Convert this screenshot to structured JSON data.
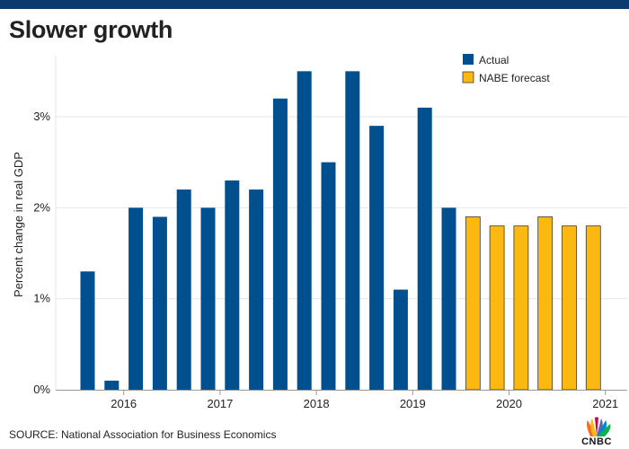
{
  "header": {
    "title": "Slower growth",
    "source": "SOURCE: National Association for Business Economics",
    "logo_text": "CNBC"
  },
  "colors": {
    "topbar": "#0b3a6e",
    "actual": "#00508f",
    "forecast": "#fbb810",
    "forecast_stroke": "#3a3a3a",
    "grid": "#e6e6e6",
    "text": "#222222"
  },
  "chart_data": {
    "type": "bar",
    "title": "Slower growth",
    "ylabel": "Percent change in real GDP",
    "xlabel": "",
    "ylim": [
      0,
      3.5
    ],
    "y_ticks": [
      0,
      1,
      2,
      3
    ],
    "y_tick_labels": [
      "0%",
      "1%",
      "2%",
      "3%"
    ],
    "x_tick_labels": [
      {
        "label": "2016",
        "after_bar": 2
      },
      {
        "label": "2017",
        "after_bar": 6
      },
      {
        "label": "2018",
        "after_bar": 10
      },
      {
        "label": "2019",
        "after_bar": 14
      },
      {
        "label": "2020",
        "after_bar": 18
      },
      {
        "label": "2021",
        "after_bar": 22
      }
    ],
    "grid": true,
    "legend_position": "top-right",
    "series": [
      {
        "name": "Actual",
        "values": [
          1.3,
          0.1,
          2.0,
          1.9,
          2.2,
          2.0,
          2.3,
          2.2,
          3.2,
          3.5,
          2.5,
          3.5,
          2.9,
          1.1,
          3.1,
          2.0,
          null,
          null,
          null,
          null,
          null,
          null
        ]
      },
      {
        "name": "NABE forecast",
        "values": [
          null,
          null,
          null,
          null,
          null,
          null,
          null,
          null,
          null,
          null,
          null,
          null,
          null,
          null,
          null,
          null,
          1.9,
          1.8,
          1.8,
          1.9,
          1.8,
          1.8
        ]
      }
    ]
  }
}
